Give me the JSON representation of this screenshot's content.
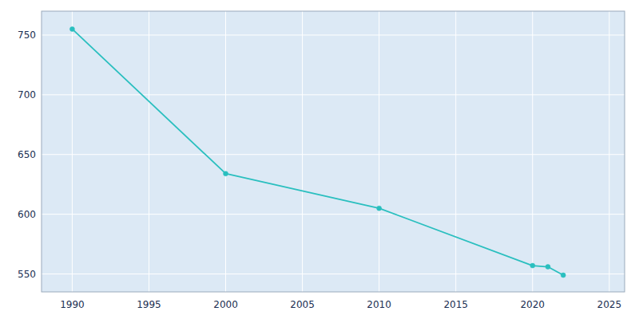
{
  "chart_data": {
    "type": "line",
    "x": [
      1990,
      2000,
      2010,
      2020,
      2021,
      2022
    ],
    "values": [
      755,
      634,
      605,
      557,
      556,
      549
    ],
    "color": "#2abfbf",
    "marker": "circle",
    "xlim": [
      1988,
      2026
    ],
    "ylim": [
      535,
      770
    ],
    "xticks": [
      1990,
      1995,
      2000,
      2005,
      2010,
      2015,
      2020,
      2025
    ],
    "yticks": [
      550,
      600,
      650,
      700,
      750
    ],
    "grid": true
  }
}
